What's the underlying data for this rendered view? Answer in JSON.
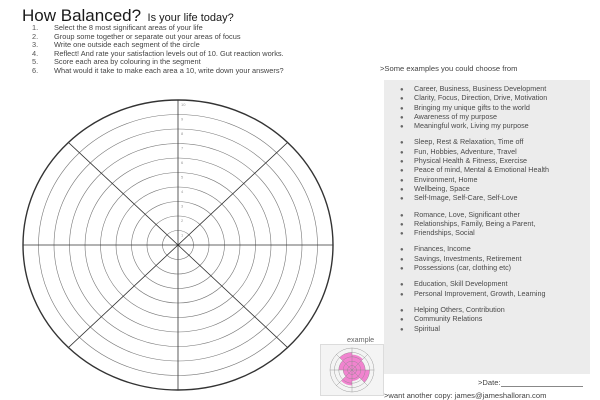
{
  "header": {
    "title": "How Balanced?",
    "subtitle": "Is your life today?"
  },
  "steps": [
    {
      "num": "1.",
      "text": "Select the 8 most significant areas of your life"
    },
    {
      "num": "2.",
      "text": "Group some together or separate out your areas of focus"
    },
    {
      "num": "3.",
      "text": "Write one outside each segment of the circle"
    },
    {
      "num": "4.",
      "text": "Reflect!  And rate your satisfaction levels out of 10. Gut reaction works."
    },
    {
      "num": "5.",
      "text": "Score each area by colouring in the segment"
    },
    {
      "num": "6.",
      "text": "What would it take to make each area a 10, write down your answers?"
    }
  ],
  "wheel": {
    "rings": 10,
    "segments": 8,
    "scale_labels": [
      "1",
      "2",
      "3",
      "4",
      "5",
      "6",
      "7",
      "8",
      "9",
      "10"
    ],
    "line_color": "#333333"
  },
  "examples": {
    "title": ">Some examples you could choose from",
    "panel_color": "#ececec",
    "groups": [
      [
        "Career, Business, Business Development",
        "Clarity, Focus, Direction, Drive, Motivation",
        "Bringing my unique gifts to the world",
        "Awareness of my purpose",
        "Meaningful work, Living my purpose"
      ],
      [
        "Sleep, Rest & Relaxation, Time off",
        "Fun, Hobbies, Adventure, Travel",
        "Physical Health & Fitness, Exercise",
        "Peace of mind, Mental & Emotional Health",
        "Environment, Home",
        "Wellbeing, Space",
        "Self-Image, Self-Care, Self-Love"
      ],
      [
        "Romance, Love, Significant other",
        "Relationships, Family, Being a Parent,",
        "Friendships, Social"
      ],
      [
        "Finances, Income",
        "Savings, Investments, Retirement",
        "Possessions (car, clothing etc)"
      ],
      [
        "Education, Skill Development",
        "Personal Improvement, Growth, Learning"
      ],
      [
        "Helping Others, Contribution",
        "Community Relations",
        "Spiritual"
      ]
    ]
  },
  "example_wheel": {
    "label": "example",
    "fill_color": "#f06fc8",
    "scores": [
      7,
      6,
      8,
      5,
      7,
      4,
      6,
      8
    ]
  },
  "footer": {
    "date_label": ">Date:",
    "copy_text": ">want another copy: james@jameshalloran.com"
  }
}
